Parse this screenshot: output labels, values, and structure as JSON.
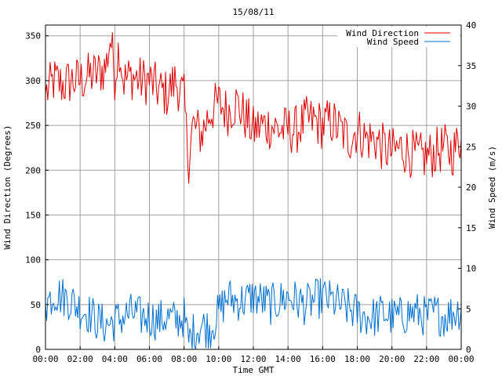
{
  "chart_data": {
    "type": "line",
    "title": "15/08/11",
    "xlabel": "Time GMT",
    "ylabel_left": "Wind Direction (Degrees)",
    "ylabel_right": "Wind Speed (m/s)",
    "x_ticks": [
      "00:00",
      "02:00",
      "04:00",
      "06:00",
      "08:00",
      "10:00",
      "12:00",
      "14:00",
      "16:00",
      "18:00",
      "20:00",
      "22:00",
      "00:00"
    ],
    "y_left_ticks": [
      "0",
      "50",
      "100",
      "150",
      "200",
      "250",
      "300",
      "350"
    ],
    "y_right_ticks": [
      "0",
      "5",
      "10",
      "15",
      "20",
      "25",
      "30",
      "35",
      "40"
    ],
    "x_range_hours": [
      0,
      24
    ],
    "y_left_range": [
      0,
      362
    ],
    "y_right_range": [
      0,
      40
    ],
    "grid": true,
    "legend_position": "top-right",
    "series": [
      {
        "name": "Wind Direction",
        "axis": "left",
        "color": "#e00000",
        "x": [
          0,
          0.5,
          1,
          1.5,
          2,
          2.5,
          3,
          3.5,
          3.75,
          4,
          4.25,
          4.5,
          5,
          5.5,
          6,
          6.5,
          7,
          7.5,
          8,
          8.25,
          8.5,
          8.75,
          9,
          9.5,
          10,
          10.5,
          11,
          11.5,
          12,
          12.5,
          13,
          13.5,
          14,
          14.5,
          15,
          15.5,
          16,
          16.5,
          17,
          17.5,
          18,
          18.5,
          19,
          19.5,
          20,
          20.5,
          21,
          21.5,
          22,
          22.5,
          23,
          23.5,
          24
        ],
        "y": [
          285,
          300,
          295,
          300,
          300,
          305,
          308,
          315,
          350,
          305,
          340,
          300,
          305,
          300,
          300,
          290,
          285,
          300,
          280,
          210,
          250,
          245,
          240,
          265,
          275,
          265,
          275,
          260,
          245,
          250,
          250,
          245,
          245,
          245,
          255,
          255,
          250,
          255,
          245,
          235,
          245,
          235,
          235,
          225,
          220,
          225,
          220,
          215,
          215,
          220,
          225,
          220,
          235
        ]
      },
      {
        "name": "Wind Speed",
        "axis": "right",
        "color": "#0070d0",
        "x": [
          0,
          0.5,
          1,
          1.5,
          2,
          2.5,
          3,
          3.5,
          4,
          4.5,
          5,
          5.5,
          6,
          6.5,
          7,
          7.5,
          8,
          8.25,
          8.5,
          9,
          9.5,
          10,
          10.5,
          11,
          11.5,
          12,
          12.5,
          13,
          13.5,
          14,
          14.5,
          15,
          15.5,
          16,
          16.5,
          17,
          17.5,
          18,
          18.5,
          19,
          19.5,
          20,
          20.5,
          21,
          21.5,
          22,
          22.5,
          23,
          23.5,
          24
        ],
        "y": [
          5.5,
          7,
          6.5,
          6,
          5,
          4.5,
          3.5,
          3,
          3.5,
          4,
          4.5,
          4,
          4,
          3.5,
          4,
          3.5,
          4,
          1,
          2,
          3,
          2.5,
          4.5,
          6.5,
          6,
          6,
          6.5,
          6,
          5.5,
          6,
          6.5,
          6,
          5.5,
          6,
          6.5,
          6,
          5.5,
          5,
          4.5,
          4,
          4,
          4.5,
          4,
          4,
          4.5,
          4.5,
          4,
          4.5,
          4,
          4.5,
          5
        ]
      }
    ]
  }
}
